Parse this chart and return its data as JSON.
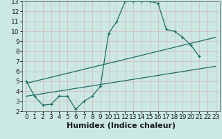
{
  "xlabel": "Humidex (Indice chaleur)",
  "ylabel": "",
  "xlim": [
    -0.5,
    23.5
  ],
  "ylim": [
    2,
    13
  ],
  "xticks": [
    0,
    1,
    2,
    3,
    4,
    5,
    6,
    7,
    8,
    9,
    10,
    11,
    12,
    13,
    14,
    15,
    16,
    17,
    18,
    19,
    20,
    21,
    22,
    23
  ],
  "yticks": [
    2,
    3,
    4,
    5,
    6,
    7,
    8,
    9,
    10,
    11,
    12,
    13
  ],
  "bg_color": "#cbe8e3",
  "line_color": "#1e6b65",
  "grid_color": "#d4b8b8",
  "line1_x": [
    0,
    1,
    2,
    3,
    4,
    5,
    6,
    7,
    8,
    9,
    10,
    11,
    12,
    13,
    14,
    15,
    16,
    17,
    18,
    19,
    20,
    21
  ],
  "line1_y": [
    5.0,
    3.5,
    2.6,
    2.7,
    3.5,
    3.5,
    2.2,
    3.0,
    3.5,
    4.5,
    9.8,
    11.0,
    13.0,
    13.0,
    13.0,
    13.0,
    12.8,
    10.2,
    10.0,
    9.4,
    8.6,
    7.5
  ],
  "line2_x": [
    0,
    23
  ],
  "line2_y": [
    3.5,
    6.5
  ],
  "line3_x": [
    0,
    23
  ],
  "line3_y": [
    4.8,
    9.4
  ],
  "font_size": 6.5
}
